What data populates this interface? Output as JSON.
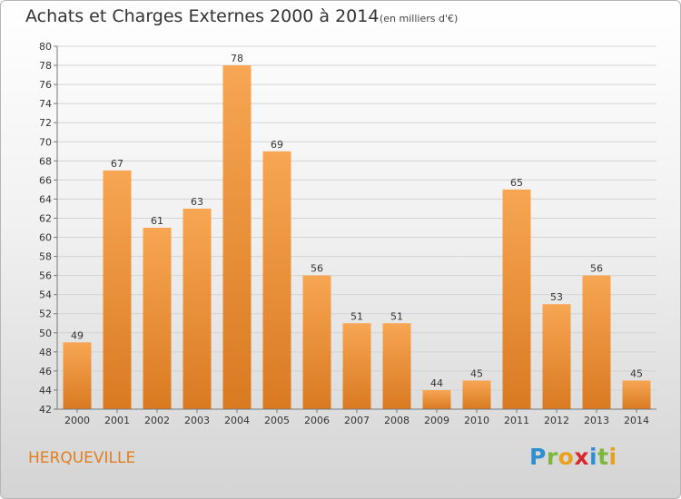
{
  "title": "Achats et Charges Externes 2000 à 2014",
  "subtitle": "(en milliers d'€)",
  "commune": "HERQUEVILLE",
  "logo": {
    "p": "P",
    "r": "r",
    "o": "o",
    "x": "x",
    "i1": "i",
    "t": "t",
    "i2": "i"
  },
  "colors": {
    "bar_light": "#f7a653",
    "bar_dark": "#d97a22",
    "commune": "#e07f1f"
  },
  "chart_data": {
    "type": "bar",
    "title": "Achats et Charges Externes 2000 à 2014",
    "subtitle": "(en milliers d'€)",
    "categories": [
      "2000",
      "2001",
      "2002",
      "2003",
      "2004",
      "2005",
      "2006",
      "2007",
      "2008",
      "2009",
      "2010",
      "2011",
      "2012",
      "2013",
      "2014"
    ],
    "values": [
      49,
      67,
      61,
      63,
      78,
      69,
      56,
      51,
      51,
      44,
      45,
      65,
      53,
      56,
      45
    ],
    "xlabel": "",
    "ylabel": "",
    "ylim": [
      42,
      80
    ],
    "yticks": [
      42,
      44,
      46,
      48,
      50,
      52,
      54,
      56,
      58,
      60,
      62,
      64,
      66,
      68,
      70,
      72,
      74,
      76,
      78,
      80
    ],
    "grid": true,
    "data_labels": true
  }
}
